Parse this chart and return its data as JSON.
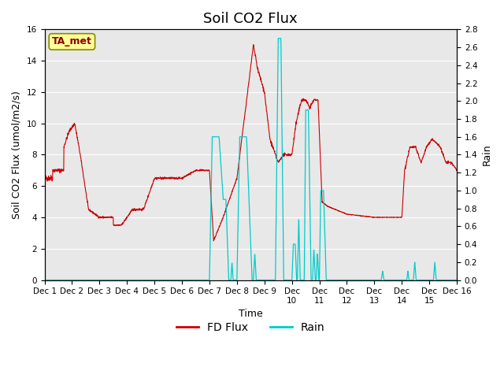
{
  "title": "Soil CO2 Flux",
  "ylabel_left": "Soil CO2 Flux (umol/m2/s)",
  "ylabel_right": "Rain",
  "xlabel": "Time",
  "xlim": [
    0,
    15
  ],
  "ylim_left": [
    0,
    16
  ],
  "ylim_right": [
    0,
    2.8
  ],
  "yticks_left": [
    0,
    2,
    4,
    6,
    8,
    10,
    12,
    14,
    16
  ],
  "yticks_right": [
    0.0,
    0.2,
    0.4,
    0.6,
    0.8,
    1.0,
    1.2,
    1.4,
    1.6,
    1.8,
    2.0,
    2.2,
    2.4,
    2.6,
    2.8
  ],
  "xtick_labels": [
    "Dec 1",
    "Dec 2",
    "Dec 3",
    "Dec 4",
    "Dec 5",
    "Dec 6",
    "Dec 7",
    "Dec 8",
    "Dec 9Dec",
    "10Dec",
    "11Dec",
    "12Dec",
    "13Dec",
    "14Dec",
    "15Dec 16"
  ],
  "flux_color": "#cc0000",
  "rain_color": "#00cccc",
  "background_color": "#e8e8e8",
  "annotation_text": "TA_met",
  "annotation_color": "#8b0000",
  "annotation_bg": "#ffff99",
  "legend_items": [
    "FD Flux",
    "Rain"
  ],
  "title_fontsize": 13,
  "label_fontsize": 9
}
